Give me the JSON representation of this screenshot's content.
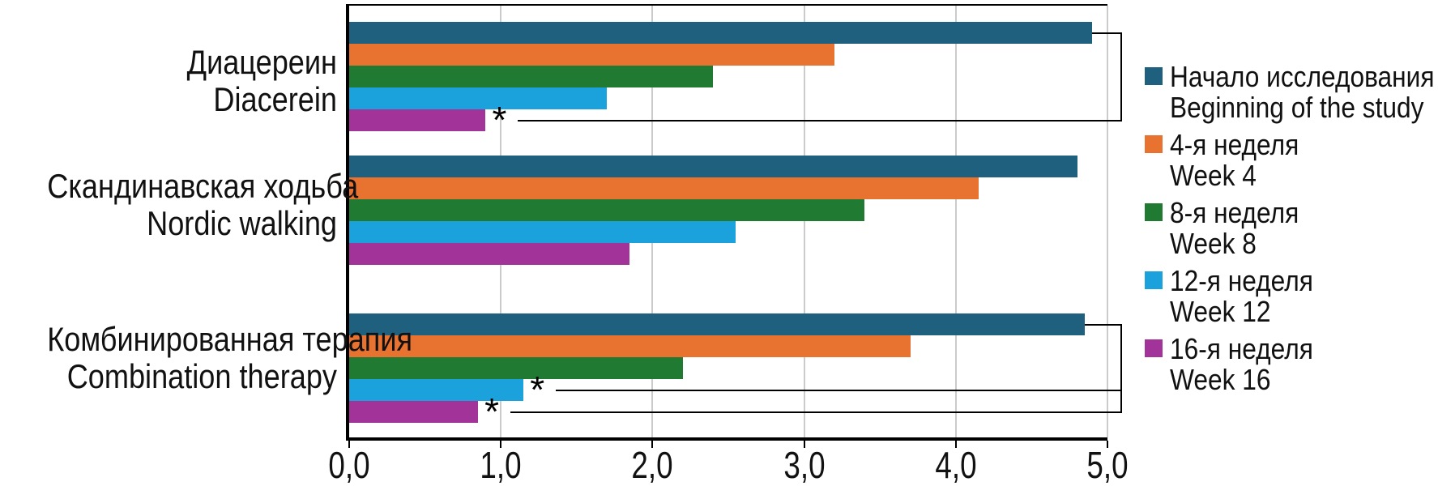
{
  "figure": {
    "background": "#ffffff"
  },
  "colors": {
    "grid": "#cbcbcb",
    "axis": "#000000",
    "text": "#111111"
  },
  "chart_data": {
    "type": "bar",
    "orientation": "horizontal",
    "title": "",
    "xlabel": "",
    "ylabel": "",
    "xlim": [
      0,
      5
    ],
    "x_tick_labels": [
      "0,0",
      "1,0",
      "2,0",
      "3,0",
      "4,0",
      "5,0"
    ],
    "grid": "vertical-gridlines-on",
    "legend_position": "right",
    "categories": [
      {
        "ru": "Диацереин",
        "en": "Diacerein"
      },
      {
        "ru": "Скандинавская ходьба",
        "en": "Nordic walking"
      },
      {
        "ru": "Комбинированная терапия",
        "en": "Combination therapy"
      }
    ],
    "series": [
      {
        "ru": "Начало исследования",
        "en": "Beginning of the study",
        "color": "#20607f",
        "values": [
          4.9,
          4.8,
          4.85
        ]
      },
      {
        "ru": "4-я неделя",
        "en": "Week 4",
        "color": "#e8722f",
        "values": [
          3.2,
          4.15,
          3.7
        ]
      },
      {
        "ru": "8-я неделя",
        "en": "Week 8",
        "color": "#217a31",
        "values": [
          2.4,
          3.4,
          2.2
        ]
      },
      {
        "ru": "12-я неделя",
        "en": "Week 12",
        "color": "#1ba2dc",
        "values": [
          1.7,
          2.55,
          1.15
        ]
      },
      {
        "ru": "16-я неделя",
        "en": "Week 16",
        "color": "#a23399",
        "values": [
          0.9,
          1.85,
          0.85
        ]
      }
    ],
    "annotations": [
      {
        "group": 0,
        "ref_series": 0,
        "starred": [
          {
            "series": 4,
            "symbol": "*"
          }
        ]
      },
      {
        "group": 2,
        "ref_series": 0,
        "starred": [
          {
            "series": 3,
            "symbol": "*"
          },
          {
            "series": 4,
            "symbol": "*"
          }
        ]
      }
    ]
  }
}
